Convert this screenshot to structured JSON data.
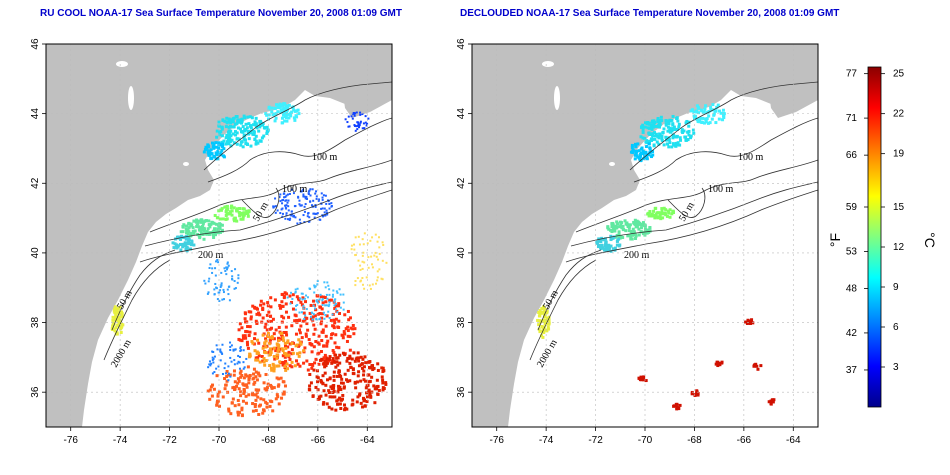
{
  "panels": [
    {
      "title": "RU COOL NOAA-17 Sea Surface Temperature November 20, 2008 01:09 GMT",
      "contour_labels": [
        "100 m",
        "100 m",
        "50 m",
        "200 m",
        "50 m",
        "2000 m"
      ]
    },
    {
      "title": "DECLOUDED NOAA-17 Sea Surface Temperature November 20, 2008 01:09 GMT",
      "contour_labels": [
        "100 m",
        "100 m",
        "50 m",
        "200 m",
        "50 m",
        "2000 m"
      ]
    }
  ],
  "axes": {
    "x_ticks": [
      "-76",
      "-74",
      "-72",
      "-70",
      "-68",
      "-66",
      "-64"
    ],
    "y_ticks": [
      "46",
      "44",
      "42",
      "40",
      "38",
      "36"
    ],
    "lon_range": [
      -77,
      -63
    ],
    "lat_range": [
      35,
      46
    ]
  },
  "colorbar": {
    "f_unit": "°F",
    "c_unit": "°C",
    "f_ticks": [
      "77",
      "71",
      "66",
      "59",
      "53",
      "48",
      "42",
      "37"
    ],
    "c_ticks": [
      "25",
      "22",
      "19",
      "15",
      "12",
      "9",
      "6",
      "3"
    ],
    "c_range": [
      0,
      25.5
    ],
    "colors": [
      "#00008b",
      "#0000ff",
      "#0080ff",
      "#00ffff",
      "#80ff80",
      "#ffff00",
      "#ff8000",
      "#ff0000",
      "#8b0000"
    ]
  },
  "colors": {
    "land": "#c0c0c0",
    "title": "#0000cc",
    "grid": "#bbbbbb"
  }
}
